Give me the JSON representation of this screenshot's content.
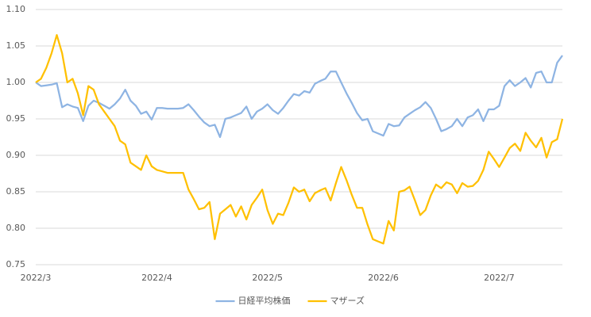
{
  "chart_data": {
    "type": "line",
    "categories": [
      "2022/3",
      null,
      null,
      null,
      null,
      null,
      null,
      null,
      null,
      null,
      null,
      null,
      null,
      null,
      null,
      null,
      null,
      null,
      null,
      null,
      null,
      null,
      null,
      "2022/4",
      null,
      null,
      null,
      null,
      null,
      null,
      null,
      null,
      null,
      null,
      null,
      null,
      null,
      null,
      null,
      null,
      null,
      null,
      null,
      null,
      "2022/5",
      null,
      null,
      null,
      null,
      null,
      null,
      null,
      null,
      null,
      null,
      null,
      null,
      null,
      null,
      null,
      null,
      null,
      null,
      null,
      null,
      null,
      "2022/6",
      null,
      null,
      null,
      null,
      null,
      null,
      null,
      null,
      null,
      null,
      null,
      null,
      null,
      null,
      null,
      null,
      null,
      null,
      null,
      null,
      null,
      "2022/7",
      null,
      null,
      null,
      null,
      null,
      null,
      null,
      null,
      null,
      null,
      null,
      null
    ],
    "series": [
      {
        "name": "日経平均株価",
        "color": "#8eb4e3",
        "values": [
          1.0,
          0.995,
          0.996,
          0.997,
          0.999,
          0.966,
          0.97,
          0.967,
          0.965,
          0.947,
          0.968,
          0.975,
          0.972,
          0.968,
          0.964,
          0.97,
          0.978,
          0.99,
          0.975,
          0.968,
          0.957,
          0.96,
          0.949,
          0.965,
          0.965,
          0.964,
          0.964,
          0.964,
          0.965,
          0.97,
          0.962,
          0.953,
          0.945,
          0.94,
          0.942,
          0.925,
          0.95,
          0.952,
          0.955,
          0.958,
          0.967,
          0.95,
          0.96,
          0.964,
          0.97,
          0.962,
          0.957,
          0.965,
          0.975,
          0.984,
          0.982,
          0.988,
          0.986,
          0.998,
          1.002,
          1.005,
          1.015,
          1.015,
          1.0,
          0.985,
          0.972,
          0.958,
          0.948,
          0.95,
          0.933,
          0.93,
          0.927,
          0.943,
          0.94,
          0.941,
          0.952,
          0.957,
          0.962,
          0.966,
          0.973,
          0.965,
          0.95,
          0.933,
          0.936,
          0.94,
          0.95,
          0.94,
          0.952,
          0.955,
          0.963,
          0.947,
          0.963,
          0.963,
          0.968,
          0.995,
          1.003,
          0.995,
          1.0,
          1.006,
          0.993,
          1.013,
          1.015,
          1.0,
          1.0,
          1.027,
          1.037
        ]
      },
      {
        "name": "マザーズ",
        "color": "#ffc000",
        "values": [
          1.0,
          1.005,
          1.02,
          1.04,
          1.065,
          1.04,
          1.0,
          1.005,
          0.985,
          0.955,
          0.995,
          0.99,
          0.97,
          0.96,
          0.95,
          0.94,
          0.92,
          0.915,
          0.89,
          0.885,
          0.88,
          0.9,
          0.885,
          0.88,
          0.878,
          0.876,
          0.876,
          0.876,
          0.876,
          0.853,
          0.84,
          0.826,
          0.828,
          0.836,
          0.785,
          0.82,
          0.826,
          0.832,
          0.816,
          0.83,
          0.812,
          0.832,
          0.842,
          0.853,
          0.825,
          0.806,
          0.82,
          0.818,
          0.835,
          0.856,
          0.85,
          0.853,
          0.837,
          0.848,
          0.852,
          0.855,
          0.838,
          0.862,
          0.884,
          0.866,
          0.846,
          0.828,
          0.828,
          0.805,
          0.785,
          0.782,
          0.779,
          0.81,
          0.797,
          0.85,
          0.852,
          0.857,
          0.838,
          0.818,
          0.825,
          0.845,
          0.86,
          0.855,
          0.863,
          0.86,
          0.848,
          0.862,
          0.857,
          0.858,
          0.865,
          0.88,
          0.905,
          0.895,
          0.884,
          0.897,
          0.91,
          0.916,
          0.906,
          0.931,
          0.92,
          0.911,
          0.924,
          0.897,
          0.918,
          0.922,
          0.95
        ]
      }
    ],
    "ylim": [
      0.75,
      1.1
    ],
    "yticks": [
      0.75,
      {
        "value": 0.8,
        "label": "0.80"
      },
      0.85,
      {
        "value": 0.9,
        "label": "0.90"
      },
      0.95,
      {
        "value": 1.0,
        "label": "1.00"
      },
      1.05,
      {
        "value": 1.1,
        "label": "1.10"
      }
    ],
    "grid": true,
    "legend": "bottom"
  }
}
